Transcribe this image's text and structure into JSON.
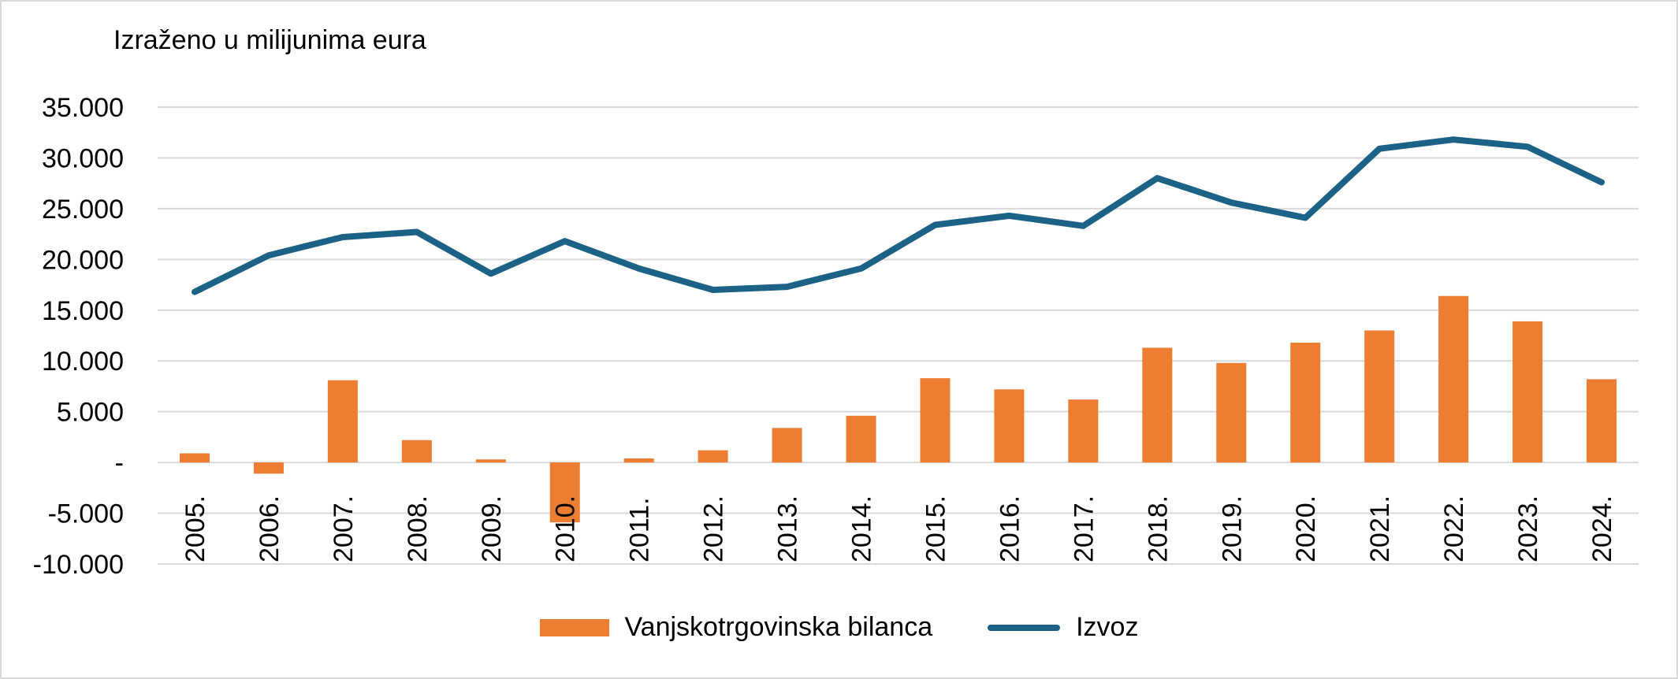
{
  "unit_note": "Izraženo u milijunima eura",
  "legend": {
    "bar_label": "Vanjskotrgovinska bilanca",
    "line_label": "Izvoz"
  },
  "colors": {
    "bar": "#ed7d31",
    "line": "#1b6286",
    "grid": "#d9d9d9"
  },
  "chart_data": {
    "type": "bar",
    "categories": [
      "2005.",
      "2006.",
      "2007.",
      "2008.",
      "2009.",
      "2010.",
      "2011.",
      "2012.",
      "2013.",
      "2014.",
      "2015.",
      "2016.",
      "2017.",
      "2018.",
      "2019.",
      "2020.",
      "2021.",
      "2022.",
      "2023.",
      "2024."
    ],
    "series": [
      {
        "name": "Vanjskotrgovinska bilanca",
        "type": "bar",
        "values": [
          900,
          -1100,
          8100,
          2200,
          300,
          -5900,
          400,
          1200,
          3400,
          4600,
          8300,
          7200,
          6200,
          11300,
          9800,
          11800,
          13000,
          16400,
          13900,
          8200
        ]
      },
      {
        "name": "Izvoz",
        "type": "line",
        "values": [
          16800,
          20400,
          22200,
          22700,
          18600,
          21800,
          19100,
          17000,
          17300,
          19100,
          23400,
          24300,
          23300,
          28000,
          25600,
          24100,
          30900,
          31800,
          31100,
          27600
        ]
      }
    ],
    "yticks": [
      "35.000",
      "30.000",
      "25.000",
      "20.000",
      "15.000",
      "10.000",
      "5.000",
      "-",
      "-5.000",
      "-10.000"
    ],
    "ylim": [
      -10000,
      35000
    ],
    "grid": true,
    "legend_position": "bottom"
  }
}
